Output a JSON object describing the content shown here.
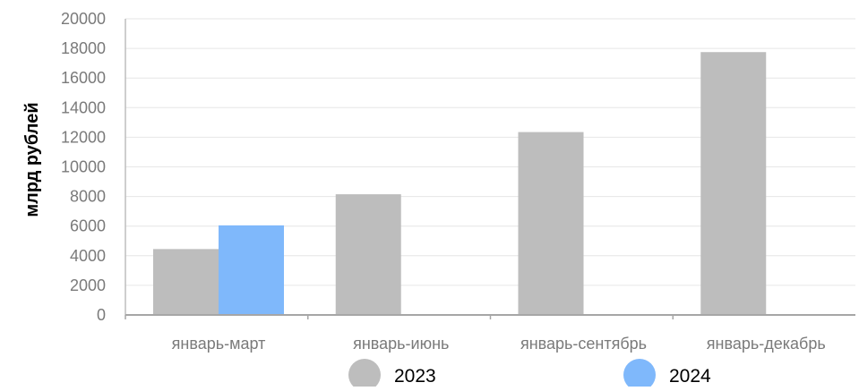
{
  "chart_data": {
    "type": "bar",
    "title": "",
    "xlabel": "",
    "ylabel": "млрд рублей",
    "ylim": [
      0,
      20000
    ],
    "yticks": [
      0,
      2000,
      4000,
      6000,
      8000,
      10000,
      12000,
      14000,
      16000,
      18000,
      20000
    ],
    "categories": [
      "январь-март",
      "январь-июнь",
      "январь-сентябрь",
      "январь-декабрь"
    ],
    "series": [
      {
        "name": "2023",
        "color": "#bdbdbd",
        "values": [
          4450,
          8150,
          12350,
          17750
        ]
      },
      {
        "name": "2024",
        "color": "#7fb8fb",
        "values": [
          6050,
          null,
          null,
          null
        ]
      }
    ],
    "grid": true,
    "legend_position": "bottom"
  }
}
